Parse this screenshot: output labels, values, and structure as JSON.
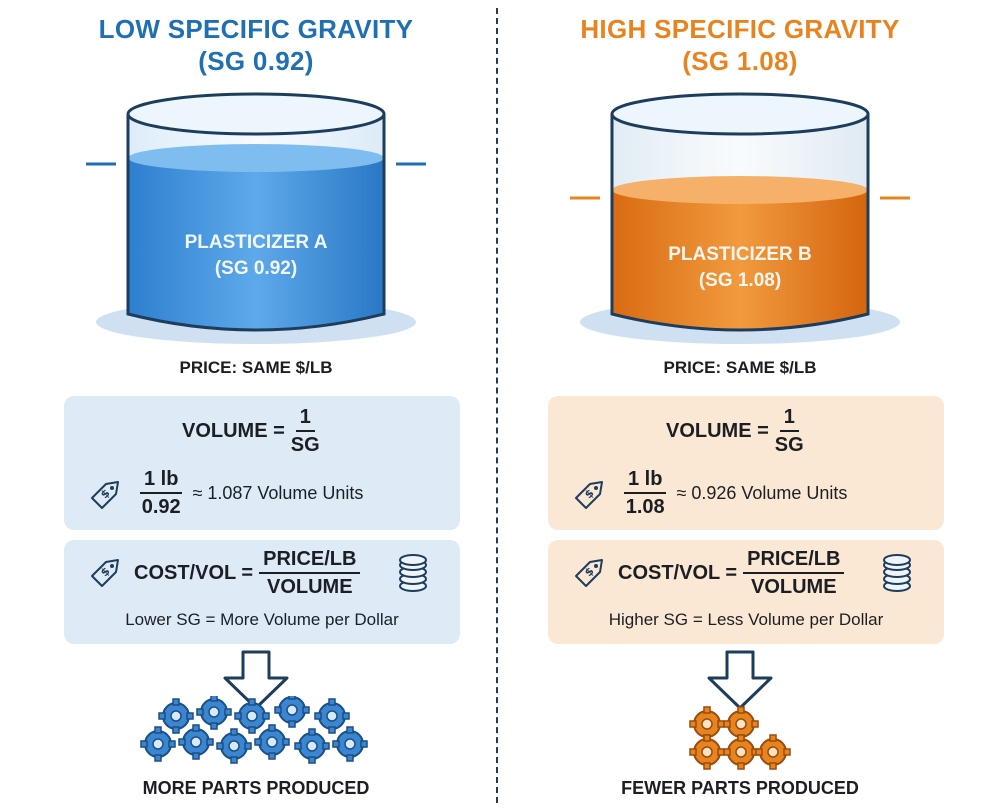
{
  "left": {
    "title_line1": "LOW SPECIFIC GRAVITY",
    "title_line2": "(SG 0.92)",
    "tank_label_line1": "PLASTICIZER A",
    "tank_label_line2": "(SG 0.92)",
    "price": "PRICE: SAME $/LB",
    "volume_label": "VOLUME =",
    "volume_num": "1",
    "volume_den": "SG",
    "calc_num": "1 lb",
    "calc_den": "0.92",
    "calc_result": "≈ 1.087 Volume Units",
    "cost_label": "COST/VOL =",
    "cost_num": "PRICE/LB",
    "cost_den": "VOLUME",
    "note": "Lower SG = More Volume per Dollar",
    "result": "MORE PARTS PRODUCED",
    "accent": "#1f6fb2",
    "liquid_level": 0.72
  },
  "right": {
    "title_line1": "HIGH SPECIFIC GRAVITY",
    "title_line2": "(SG 1.08)",
    "tank_label_line1": "PLASTICIZER B",
    "tank_label_line2": "(SG 1.08)",
    "price": "PRICE: SAME $/LB",
    "volume_label": "VOLUME =",
    "volume_num": "1",
    "volume_den": "SG",
    "calc_num": "1 lb",
    "calc_den": "1.08",
    "calc_result": "≈ 0.926 Volume Units",
    "cost_label": "COST/VOL =",
    "cost_num": "PRICE/LB",
    "cost_den": "VOLUME",
    "note": "Higher SG = Less Volume per Dollar",
    "result": "FEWER PARTS PRODUCED",
    "accent": "#e8841f",
    "liquid_level": 0.61
  },
  "icons": {
    "tag": "price-tag-icon",
    "coins": "coin-stack-icon",
    "arrow": "down-arrow-icon",
    "gears": "gear-icon"
  }
}
